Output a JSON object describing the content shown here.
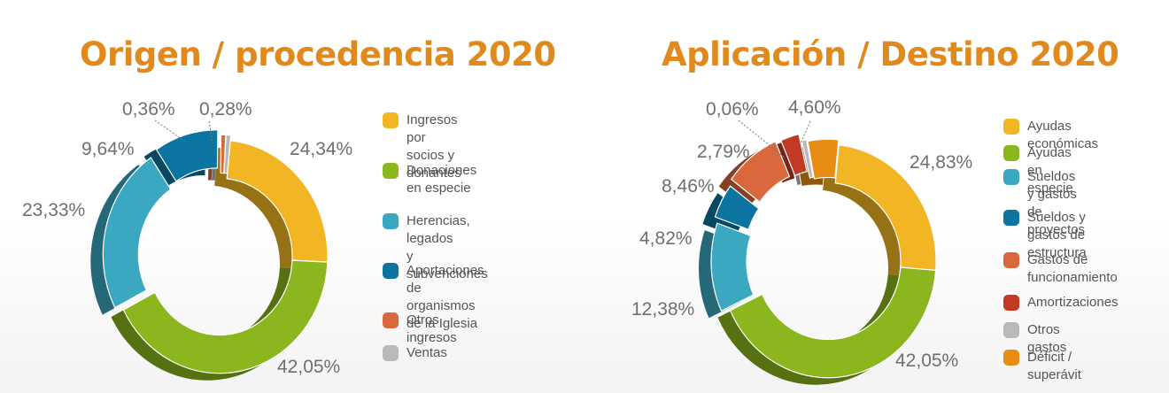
{
  "chart_data": [
    {
      "type": "pie",
      "title": "Origen / procedencia 2020",
      "categories": [
        "Ingresos por socios y\ndonantes",
        "Donaciones\nen especie",
        "Herencias, legados\ny subvenciones",
        "Aportaciones de\norganismos de la Iglesia",
        "Otros ingresos",
        "Ventas"
      ],
      "values": [
        24.34,
        42.05,
        23.33,
        9.64,
        0.36,
        0.28
      ],
      "labels": [
        "24,34%",
        "42,05%",
        "23,33%",
        "9,64%",
        "0,36%",
        "0,28%"
      ],
      "colors": [
        "#f2b624",
        "#8bb61d",
        "#3ba8c2",
        "#0b74a0",
        "#d9683c",
        "#b9b9b9"
      ],
      "legend": "right"
    },
    {
      "type": "pie",
      "title": "Aplicación / Destino 2020",
      "categories": [
        "Ayudas económicas",
        "Ayudas en especie",
        "Sueldos y gastos de\nproyectos",
        "Sueldos y gastos de\nestructura",
        "Gastos de\nfuncionamiento",
        "Amortizaciones",
        "Otros gastos",
        "Déficit / superávit"
      ],
      "values": [
        24.83,
        42.05,
        12.38,
        4.82,
        8.46,
        2.79,
        0.06,
        4.6
      ],
      "labels": [
        "24,83%",
        "42,05%",
        "12,38%",
        "4,82%",
        "8,46%",
        "2,79%",
        "0,06%",
        "4,60%"
      ],
      "colors": [
        "#f2b624",
        "#8bb61d",
        "#3ba8c2",
        "#0b74a0",
        "#d9683c",
        "#c03a25",
        "#b9b9b9",
        "#e98c12"
      ],
      "legend": "right"
    }
  ]
}
